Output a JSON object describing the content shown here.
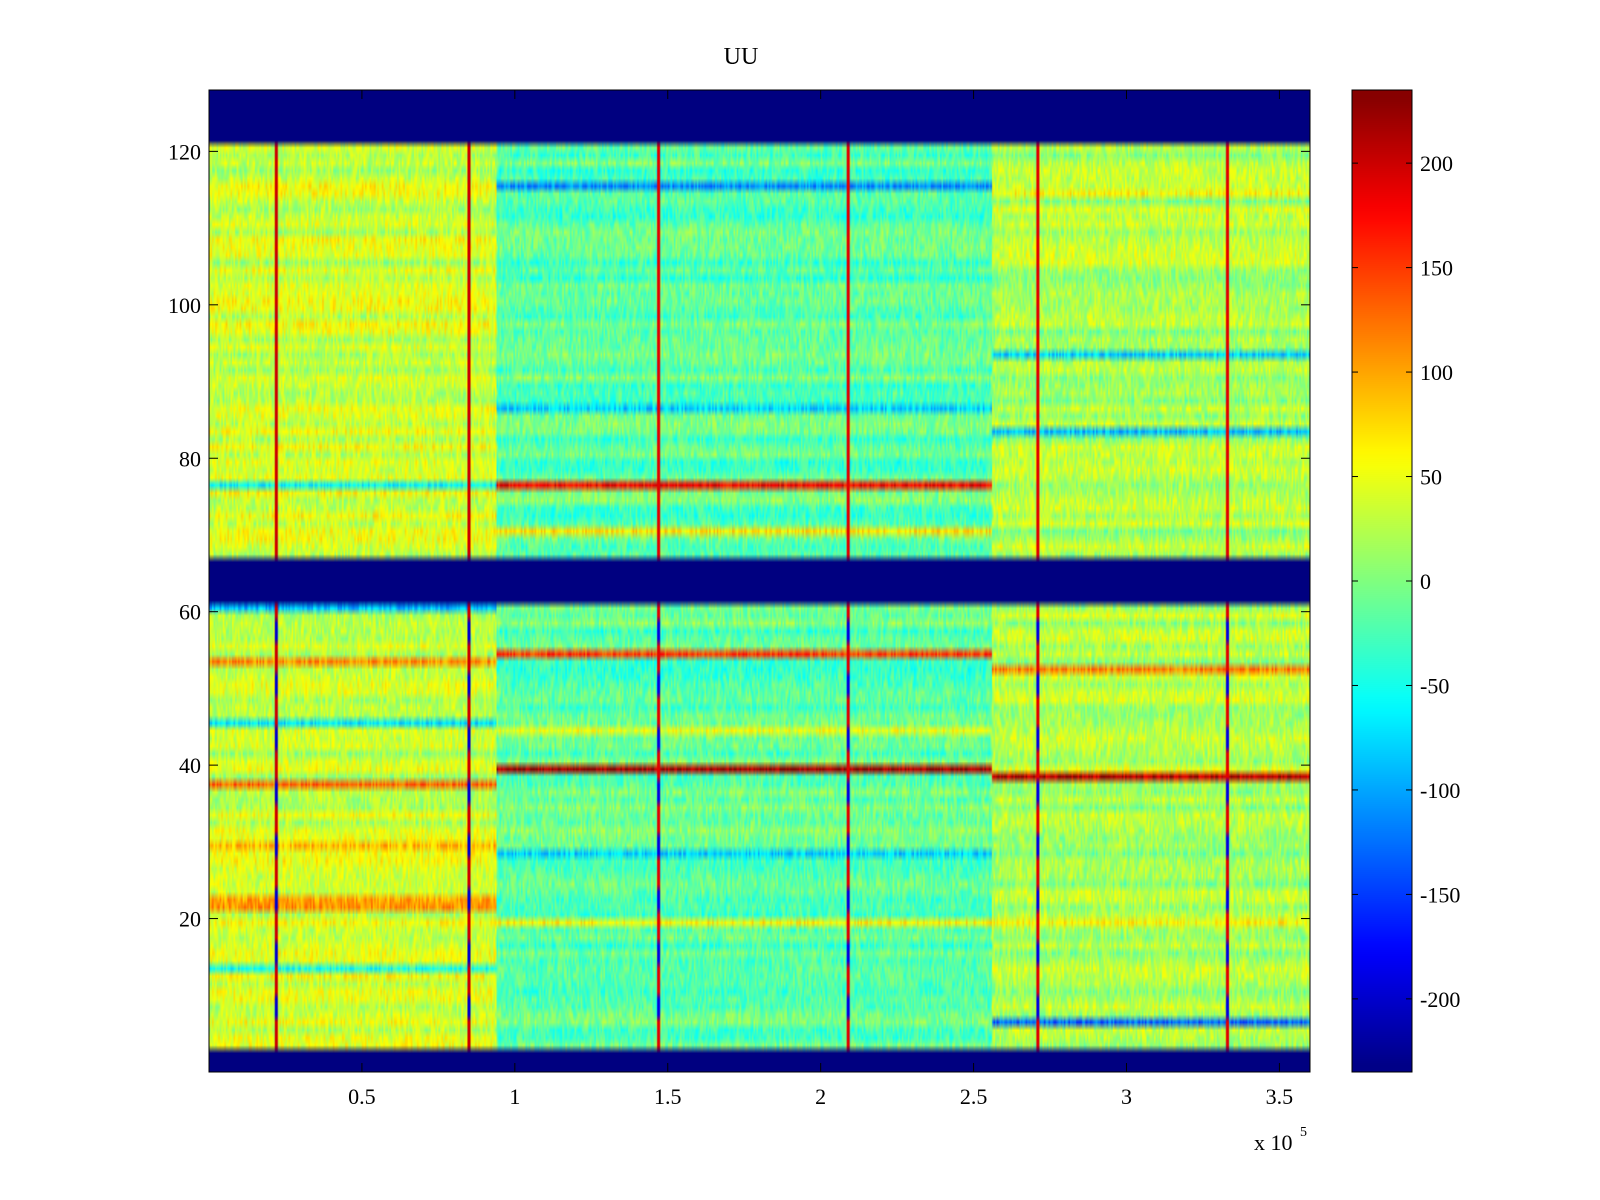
{
  "chart_data": {
    "type": "heatmap",
    "title": "UU",
    "xlabel": "",
    "ylabel": "",
    "x_scale_label": "x 10",
    "x_scale_exponent": "5",
    "xlim": [
      0,
      3.6
    ],
    "ylim": [
      0,
      128
    ],
    "x_ticks": [
      {
        "value": 0.5,
        "label": "0.5"
      },
      {
        "value": 1.0,
        "label": "1"
      },
      {
        "value": 1.5,
        "label": "1.5"
      },
      {
        "value": 2.0,
        "label": "2"
      },
      {
        "value": 2.5,
        "label": "2.5"
      },
      {
        "value": 3.0,
        "label": "3"
      },
      {
        "value": 3.5,
        "label": "3.5"
      }
    ],
    "y_ticks": [
      {
        "value": 20,
        "label": "20"
      },
      {
        "value": 40,
        "label": "40"
      },
      {
        "value": 60,
        "label": "60"
      },
      {
        "value": 80,
        "label": "80"
      },
      {
        "value": 100,
        "label": "100"
      },
      {
        "value": 120,
        "label": "120"
      }
    ],
    "colorbar": {
      "colormap": "jet",
      "clim": [
        -235,
        235
      ],
      "ticks": [
        {
          "value": 200,
          "label": "200"
        },
        {
          "value": 150,
          "label": "150"
        },
        {
          "value": 100,
          "label": "100"
        },
        {
          "value": 50,
          "label": "50"
        },
        {
          "value": 0,
          "label": "0"
        },
        {
          "value": -50,
          "label": "-50"
        },
        {
          "value": -100,
          "label": "-100"
        },
        {
          "value": -150,
          "label": "-150"
        },
        {
          "value": -200,
          "label": "-200"
        }
      ]
    },
    "masked_value": -235,
    "masked_rows": [
      [
        0,
        3
      ],
      [
        61,
        67
      ],
      [
        121,
        128
      ]
    ],
    "segments": [
      {
        "x_start": 0.0,
        "x_end": 0.94,
        "base_level": 35
      },
      {
        "x_start": 0.94,
        "x_end": 2.56,
        "base_level": -15
      },
      {
        "x_start": 2.56,
        "x_end": 3.6,
        "base_level": 20
      }
    ],
    "row_features": [
      {
        "segment": 0,
        "row": 76,
        "value": -60
      },
      {
        "segment": 0,
        "row": 53,
        "value": 110
      },
      {
        "segment": 0,
        "row": 37,
        "value": 130
      },
      {
        "segment": 0,
        "row": 29,
        "value": 90
      },
      {
        "segment": 0,
        "row": 21,
        "value": 110
      },
      {
        "segment": 0,
        "row": 22,
        "value": 100
      },
      {
        "segment": 0,
        "row": 13,
        "value": -50
      },
      {
        "segment": 0,
        "row": 60,
        "value": -90
      },
      {
        "segment": 0,
        "row": 45,
        "value": -70
      },
      {
        "segment": 1,
        "row": 76,
        "value": 180
      },
      {
        "segment": 1,
        "row": 54,
        "value": 150
      },
      {
        "segment": 1,
        "row": 39,
        "value": 220
      },
      {
        "segment": 1,
        "row": 115,
        "value": -110
      },
      {
        "segment": 1,
        "row": 86,
        "value": -80
      },
      {
        "segment": 1,
        "row": 28,
        "value": -80
      },
      {
        "segment": 1,
        "row": 19,
        "value": 60
      },
      {
        "segment": 1,
        "row": 70,
        "value": 70
      },
      {
        "segment": 1,
        "row": 44,
        "value": 50
      },
      {
        "segment": 2,
        "row": 38,
        "value": 210
      },
      {
        "segment": 2,
        "row": 52,
        "value": 120
      },
      {
        "segment": 2,
        "row": 6,
        "value": -130
      },
      {
        "segment": 2,
        "row": 93,
        "value": -80
      },
      {
        "segment": 2,
        "row": 83,
        "value": -90
      },
      {
        "segment": 2,
        "row": 114,
        "value": 60
      },
      {
        "segment": 2,
        "row": 19,
        "value": 60
      }
    ],
    "vertical_spikes": [
      {
        "x": 0.22,
        "upper_value": 200,
        "lower_value": -200
      },
      {
        "x": 0.85,
        "upper_value": 200,
        "lower_value": -200
      },
      {
        "x": 1.47,
        "upper_value": 190,
        "lower_value": -190
      },
      {
        "x": 2.09,
        "upper_value": 190,
        "lower_value": -190
      },
      {
        "x": 2.71,
        "upper_value": 190,
        "lower_value": -190
      },
      {
        "x": 3.33,
        "upper_value": 190,
        "lower_value": -190
      }
    ]
  }
}
